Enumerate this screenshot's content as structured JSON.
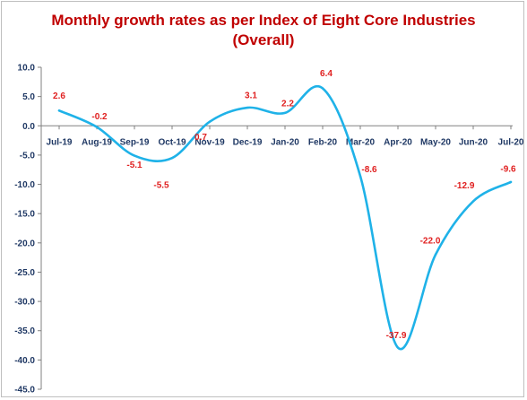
{
  "chart_data": {
    "type": "line",
    "title_line1": "Monthly growth rates as per Index of Eight Core Industries",
    "title_line2": "(Overall)",
    "categories": [
      "Jul-19",
      "Aug-19",
      "Sep-19",
      "Oct-19",
      "Nov-19",
      "Dec-19",
      "Jan-20",
      "Feb-20",
      "Mar-20",
      "Apr-20",
      "May-20",
      "Jun-20",
      "Jul-20"
    ],
    "values": [
      2.6,
      -0.2,
      -5.1,
      -5.5,
      0.7,
      3.1,
      2.2,
      6.4,
      -8.6,
      -37.9,
      -22.0,
      -12.9,
      -9.6
    ],
    "data_labels": [
      "2.6",
      "-0.2",
      "-5.1",
      "-5.5",
      "0.7",
      "3.1",
      "2.2",
      "6.4",
      "-8.6",
      "-37.9",
      "-22.0",
      "-12.9",
      "-9.6"
    ],
    "y_ticks": [
      "10.0",
      "5.0",
      "0.0",
      "-5.0",
      "-10.0",
      "-15.0",
      "-20.0",
      "-25.0",
      "-30.0",
      "-35.0",
      "-40.0",
      "-45.0"
    ],
    "ylim": [
      -45,
      10
    ],
    "xlabel": "",
    "ylabel": "",
    "grid": false,
    "legend": "none",
    "line_color": "#1fb2e8",
    "label_color": "#e02020",
    "axis_text_color": "#1f3864"
  }
}
